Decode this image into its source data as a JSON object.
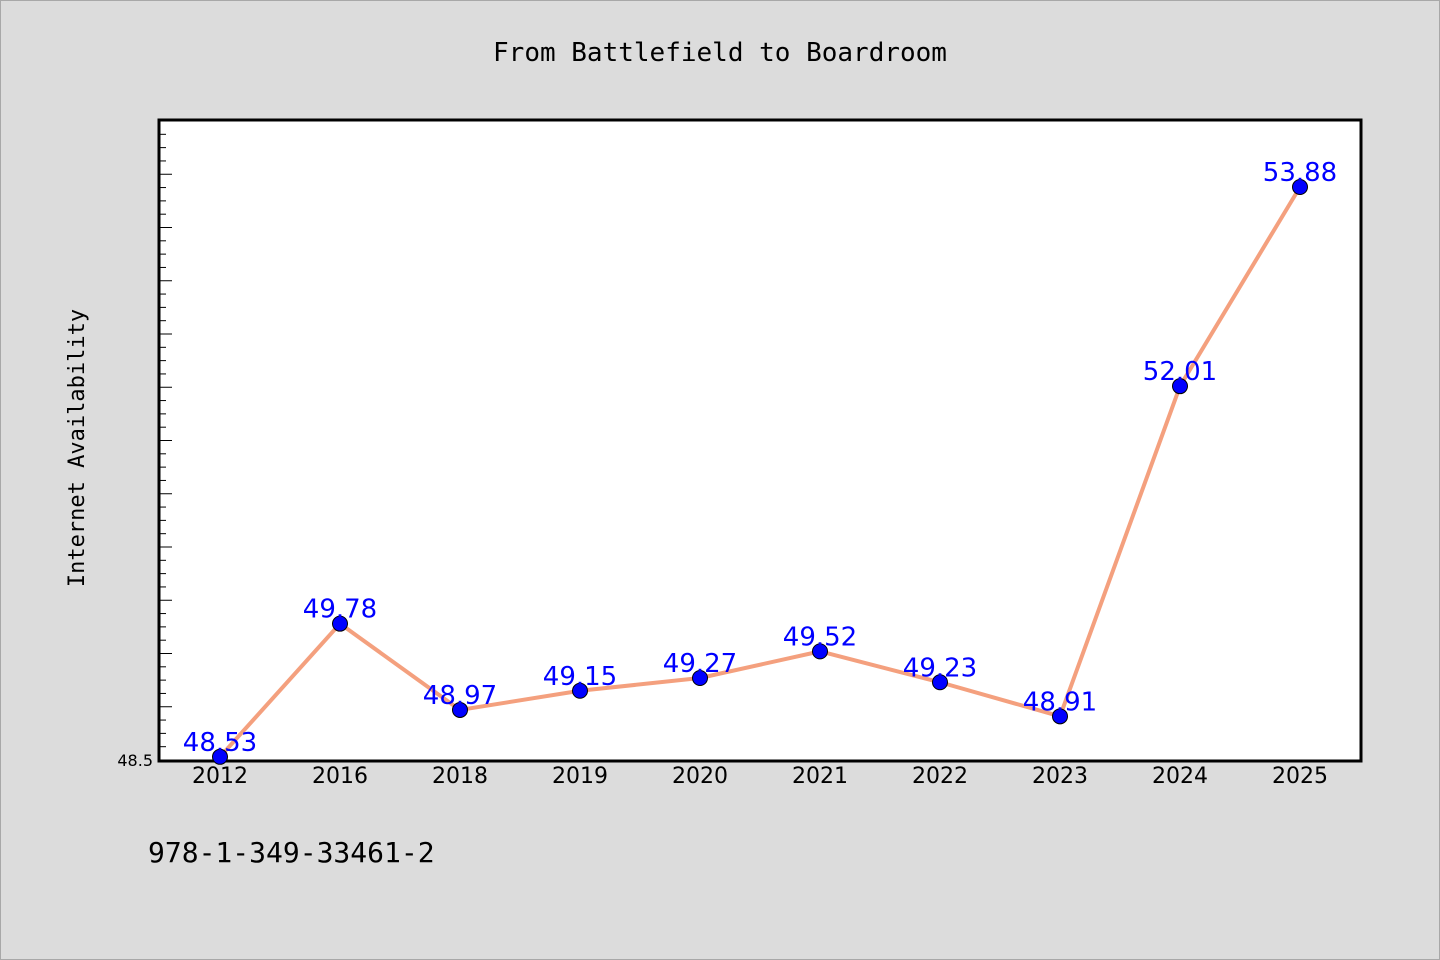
{
  "chart_data": {
    "type": "line",
    "title": "From Battlefield to Boardroom",
    "xlabel": "",
    "ylabel": "Internet Availability",
    "categories": [
      "2012",
      "2016",
      "2018",
      "2019",
      "2020",
      "2021",
      "2022",
      "2023",
      "2024",
      "2025"
    ],
    "values": [
      48.53,
      49.78,
      48.97,
      49.15,
      49.27,
      49.52,
      49.23,
      48.91,
      52.01,
      53.88
    ],
    "data_labels": [
      "48.53",
      "49.78",
      "48.97",
      "49.15",
      "49.27",
      "49.52",
      "49.23",
      "48.91",
      "52.01",
      "53.88"
    ],
    "ylim": [
      48.5,
      54.5
    ],
    "yticks_labeled": [
      "48.5"
    ],
    "grid": false,
    "line_color": "#f4a07e",
    "marker_color": "#0000ff",
    "label_color": "#0000ff"
  },
  "footer_text": "978-1-349-33461-2"
}
